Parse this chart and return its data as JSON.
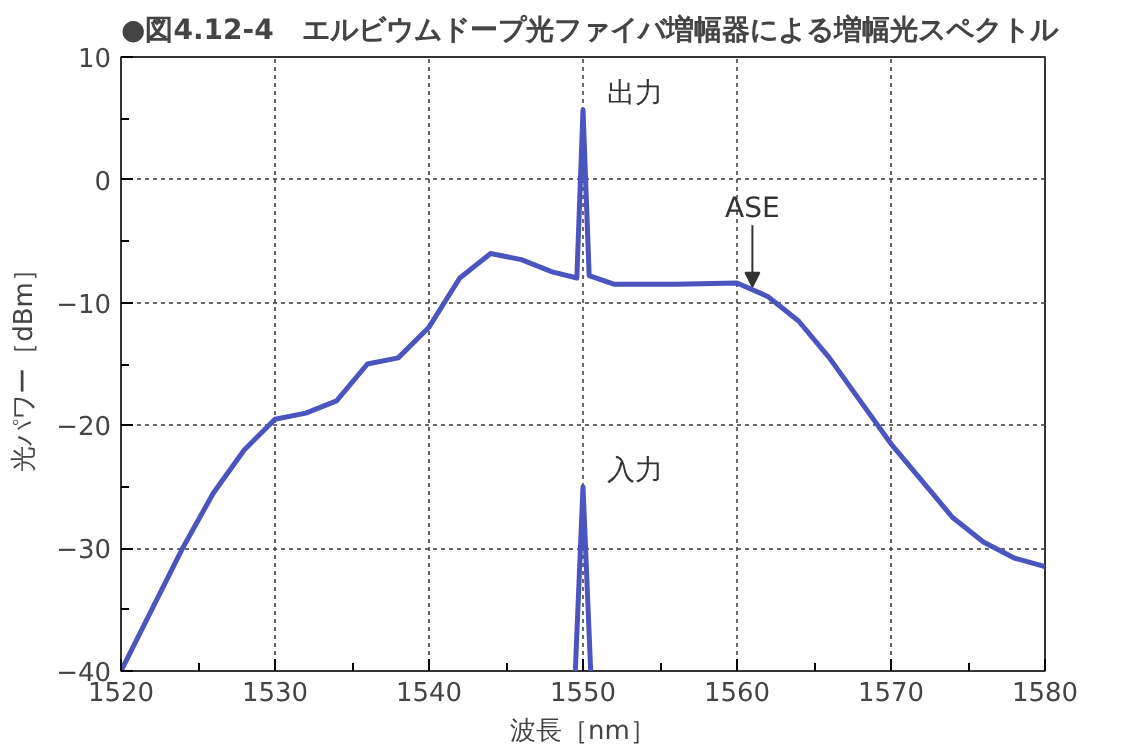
{
  "chart_data": {
    "type": "line",
    "title": "●図4.12-4　エルビウムドープ光ファイバ増幅器による増幅光スペクトル",
    "xlabel": "波長［nm］",
    "ylabel": "光パワー［dBm］",
    "xlim": [
      1520,
      1580
    ],
    "ylim": [
      -40,
      10
    ],
    "xticks": [
      1520,
      1530,
      1540,
      1550,
      1560,
      1570,
      1580
    ],
    "yticks": [
      -40,
      -30,
      -20,
      -10,
      0,
      10
    ],
    "grid": true,
    "line_style": "solid",
    "marker": "none",
    "series": [
      {
        "color": "#4a55c0",
        "x": [
          1520,
          1522,
          1524,
          1526,
          1528,
          1530,
          1532,
          1534,
          1536,
          1538,
          1540,
          1542,
          1544,
          1546,
          1548,
          1549.6,
          1550,
          1550.4,
          1552,
          1556,
          1560,
          1562,
          1564,
          1566,
          1568,
          1570,
          1572,
          1574,
          1576,
          1578,
          1580
        ],
        "values": [
          -40,
          -35,
          -30,
          -25.5,
          -22,
          -19.5,
          -19,
          -18,
          -15,
          -14.5,
          -12,
          -8,
          -6,
          -6.5,
          -7.5,
          -8,
          5.7,
          -7.8,
          -8.5,
          -8.5,
          -8.4,
          -9.5,
          -11.5,
          -14.5,
          -18,
          -21.5,
          -24.5,
          -27.5,
          -29.5,
          -30.8,
          -31.5
        ]
      },
      {
        "color": "#4a55c0",
        "x": [
          1549.5,
          1550,
          1550.5
        ],
        "values": [
          -40,
          -25,
          -40
        ]
      }
    ],
    "annotations": [
      "出力",
      "入力",
      {
        "text": "ASE",
        "x": 1561,
        "y": -8.7
      }
    ]
  }
}
